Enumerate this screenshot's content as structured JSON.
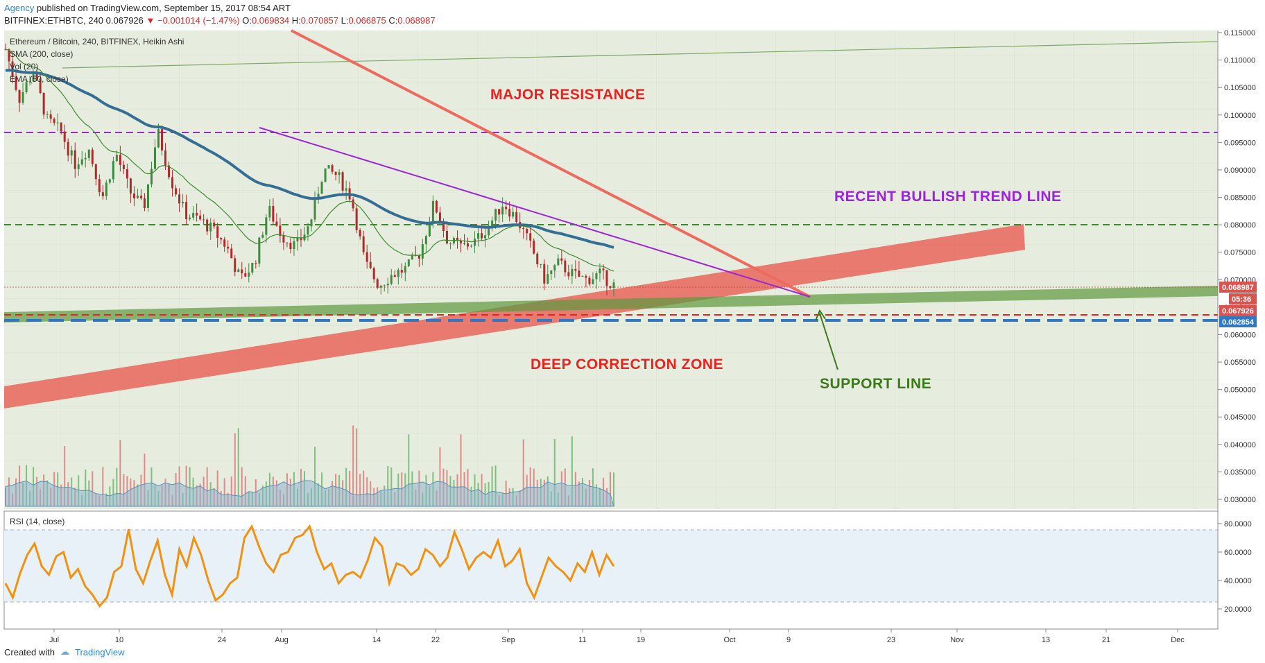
{
  "header": {
    "author": "Agency",
    "published": "published on TradingView.com, September 15, 2017 08:54 ART",
    "symbol": "BITFINEX:ETHBTC, 240",
    "price": "0.067926",
    "change": "−0.001014 (−1.47%)",
    "o_label": "O:",
    "o_value": "0.069834",
    "h_label": "H:",
    "h_value": "0.070857",
    "l_label": "L:",
    "l_value": "0.066875",
    "c_label": "C:",
    "c_value": "0.068987"
  },
  "legend": {
    "line1": "Ethereum / Bitcoin, 240, BITFINEX, Heikin Ashi",
    "line2": "SMA (200, close)",
    "line3": "Vol (20)",
    "line4": "EMA (50, close)",
    "rsi": "RSI (14, close)"
  },
  "annotations": {
    "major_resistance": "MAJOR RESISTANCE",
    "bullish_trend": "RECENT BULLISH TREND LINE",
    "deep_correction": "DEEP CORRECTION ZONE",
    "support_line": "SUPPORT LINE"
  },
  "colors": {
    "resistance": "#e8231f",
    "bullish": "#9b24d8",
    "correction": "#e8231f",
    "support": "#3a7a1a",
    "rsi_line": "#f0920f",
    "sma": "#356e94"
  },
  "price_tags": {
    "close": "0.068987",
    "countdown": "05:36",
    "last": "0.067926",
    "level": "0.062854"
  },
  "footer": {
    "created": "Created with",
    "brand": "TradingView"
  },
  "chart_data": {
    "type": "line",
    "title": "Ethereum / Bitcoin, 240, BITFINEX, Heikin Ashi",
    "x_ticks": [
      "Jul",
      "10",
      "24",
      "Aug",
      "14",
      "22",
      "Sep",
      "11",
      "19",
      "Oct",
      "9",
      "23",
      "Nov",
      "13",
      "21",
      "Dec"
    ],
    "y_ticks": [
      "0.115000",
      "0.110000",
      "0.105000",
      "0.100000",
      "0.095000",
      "0.090000",
      "0.085000",
      "0.080000",
      "0.075000",
      "0.070000",
      "0.065000",
      "0.060000",
      "0.055000",
      "0.050000",
      "0.045000",
      "0.040000",
      "0.035000",
      "0.030000"
    ],
    "ylim": [
      0.028,
      0.116
    ],
    "rsi_ticks": [
      "80.0000",
      "60.0000",
      "40.0000",
      "20.0000"
    ],
    "rsi_ylim": [
      10,
      90
    ],
    "price_series": [
      {
        "x": 0,
        "y": 0.112
      },
      {
        "x": 2,
        "y": 0.103
      },
      {
        "x": 4,
        "y": 0.108
      },
      {
        "x": 6,
        "y": 0.099
      },
      {
        "x": 8,
        "y": 0.097
      },
      {
        "x": 10,
        "y": 0.091
      },
      {
        "x": 12,
        "y": 0.094
      },
      {
        "x": 14,
        "y": 0.085
      },
      {
        "x": 16,
        "y": 0.093
      },
      {
        "x": 18,
        "y": 0.086
      },
      {
        "x": 20,
        "y": 0.083
      },
      {
        "x": 22,
        "y": 0.097
      },
      {
        "x": 24,
        "y": 0.088
      },
      {
        "x": 26,
        "y": 0.082
      },
      {
        "x": 28,
        "y": 0.081
      },
      {
        "x": 30,
        "y": 0.079
      },
      {
        "x": 32,
        "y": 0.076
      },
      {
        "x": 34,
        "y": 0.07
      },
      {
        "x": 36,
        "y": 0.073
      },
      {
        "x": 38,
        "y": 0.083
      },
      {
        "x": 40,
        "y": 0.078
      },
      {
        "x": 42,
        "y": 0.076
      },
      {
        "x": 44,
        "y": 0.08
      },
      {
        "x": 46,
        "y": 0.09
      },
      {
        "x": 48,
        "y": 0.089
      },
      {
        "x": 50,
        "y": 0.085
      },
      {
        "x": 52,
        "y": 0.073
      },
      {
        "x": 54,
        "y": 0.069
      },
      {
        "x": 56,
        "y": 0.071
      },
      {
        "x": 58,
        "y": 0.072
      },
      {
        "x": 60,
        "y": 0.075
      },
      {
        "x": 62,
        "y": 0.084
      },
      {
        "x": 64,
        "y": 0.077
      },
      {
        "x": 66,
        "y": 0.076
      },
      {
        "x": 68,
        "y": 0.077
      },
      {
        "x": 70,
        "y": 0.08
      },
      {
        "x": 72,
        "y": 0.084
      },
      {
        "x": 74,
        "y": 0.081
      },
      {
        "x": 76,
        "y": 0.076
      },
      {
        "x": 78,
        "y": 0.07
      },
      {
        "x": 80,
        "y": 0.073
      },
      {
        "x": 82,
        "y": 0.071
      },
      {
        "x": 84,
        "y": 0.07
      },
      {
        "x": 86,
        "y": 0.071
      },
      {
        "x": 88,
        "y": 0.069
      }
    ],
    "rsi_series": [
      38,
      28,
      45,
      58,
      66,
      50,
      44,
      57,
      60,
      42,
      48,
      36,
      30,
      22,
      28,
      46,
      50,
      76,
      48,
      38,
      54,
      68,
      44,
      30,
      62,
      50,
      70,
      58,
      40,
      26,
      30,
      38,
      42,
      70,
      78,
      64,
      52,
      46,
      58,
      60,
      70,
      72,
      78,
      60,
      48,
      52,
      38,
      44,
      46,
      42,
      54,
      70,
      64,
      38,
      52,
      50,
      44,
      48,
      62,
      58,
      50,
      56,
      74,
      62,
      48,
      56,
      60,
      56,
      68,
      50,
      54,
      62,
      38,
      28,
      42,
      56,
      50,
      46,
      40,
      52,
      46,
      60,
      44,
      58,
      50
    ]
  }
}
